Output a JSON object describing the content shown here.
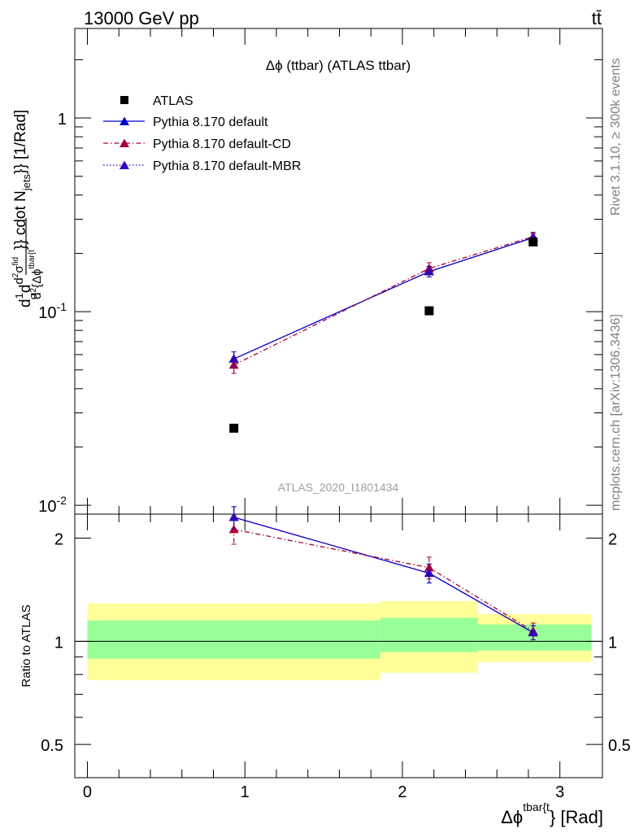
{
  "header": {
    "left": "13000 GeV pp",
    "right": "tt̄"
  },
  "side_labels": {
    "rivet": "Rivet 3.1.10, ≥ 300k events",
    "source": "mcplots.cern.ch [arXiv:1306.3436]"
  },
  "chart_data": [
    {
      "type": "line",
      "title": "Δϕ (ttbar) (ATLAS ttbar)",
      "analysis_label": "ATLAS_2020_I1801434",
      "ylabel": "d¹⁄σ d d²σ^fid ⁄ d² {Δϕ^tbar{t}} cdot N_jets}} [1/Rad]",
      "ylabel_parts": {
        "a": "d",
        "b": "1",
        "c": "σ",
        "d": "d",
        "e": "d",
        "e_sup": "2",
        "f": "σ",
        "f_sup": "fid",
        "g": "d",
        "g_sup": "2",
        "h": "{Δϕ",
        "h_sup": "tbar{t",
        "i": "}} cdot N",
        "i_sub": "jets",
        "j": "}} [1/Rad]"
      },
      "yscale": "log",
      "ylim": [
        0.009,
        2.9
      ],
      "xlim": [
        -0.08,
        3.27
      ],
      "y_ticks": [
        {
          "value": 0.01,
          "label": "10",
          "exp": "-2"
        },
        {
          "value": 0.1,
          "label": "10",
          "exp": "-1"
        },
        {
          "value": 1,
          "label": "1",
          "exp": ""
        }
      ],
      "legend_placement": "top-left",
      "legend": [
        {
          "name": "ATLAS",
          "marker": "square"
        },
        {
          "name": "Pythia 8.170 default",
          "marker": "triangle"
        },
        {
          "name": "Pythia 8.170 default-CD",
          "marker": "triangle"
        },
        {
          "name": "Pythia 8.170 default-MBR",
          "marker": "triangle"
        }
      ],
      "series": [
        {
          "name": "ATLAS",
          "color": "#000000",
          "style": "marker",
          "x": [
            0.93,
            2.17,
            2.83
          ],
          "y": [
            0.025,
            0.101,
            0.229
          ]
        },
        {
          "name": "Pythia 8.170 default",
          "color": "#0000cc",
          "style": "solid",
          "x": [
            0.93,
            2.17,
            2.83
          ],
          "y": [
            0.057,
            0.161,
            0.241
          ],
          "yerr": [
            0.005,
            0.01,
            0.012
          ]
        },
        {
          "name": "Pythia 8.170 default-CD",
          "color": "#aa0033",
          "style": "dashdot",
          "x": [
            0.93,
            2.17,
            2.83
          ],
          "y": [
            0.053,
            0.167,
            0.244
          ],
          "yerr": [
            0.005,
            0.012,
            0.013
          ]
        },
        {
          "name": "Pythia 8.170 default-MBR",
          "color": "#3300bb",
          "style": "dotted",
          "x": [
            0.93,
            2.17,
            2.83
          ],
          "y": [
            0.057,
            0.161,
            0.241
          ],
          "yerr": [
            0.005,
            0.01,
            0.012
          ]
        }
      ]
    },
    {
      "type": "line",
      "ylabel": "Ratio to ATLAS",
      "xlabel": "Δϕ",
      "xlabel_sup": "tbar{t",
      "xlabel_tail": "} [Rad]",
      "yscale": "log",
      "ylim": [
        0.4,
        2.35
      ],
      "xlim": [
        -0.08,
        3.27
      ],
      "y_ticks": [
        {
          "value": 0.5,
          "label": "0.5"
        },
        {
          "value": 1,
          "label": "1"
        },
        {
          "value": 2,
          "label": "2"
        }
      ],
      "x_ticks": [
        {
          "value": 0,
          "label": "0"
        },
        {
          "value": 1,
          "label": "1"
        },
        {
          "value": 2,
          "label": "2"
        },
        {
          "value": 3,
          "label": "3"
        }
      ],
      "uncertainty_bands": [
        {
          "x0": 0.0,
          "x1": 1.86,
          "yellow": [
            0.77,
            1.29
          ],
          "green": [
            0.89,
            1.15
          ]
        },
        {
          "x0": 1.86,
          "x1": 2.48,
          "yellow": [
            0.81,
            1.31
          ],
          "green": [
            0.93,
            1.17
          ]
        },
        {
          "x0": 2.48,
          "x1": 3.2,
          "yellow": [
            0.87,
            1.2
          ],
          "green": [
            0.94,
            1.12
          ]
        }
      ],
      "series": [
        {
          "name": "Pythia 8.170 default",
          "color": "#0000cc",
          "style": "solid",
          "x": [
            0.93,
            2.17,
            2.83
          ],
          "y": [
            2.3,
            1.58,
            1.06
          ],
          "yerr": [
            0.17,
            0.1,
            0.05
          ]
        },
        {
          "name": "Pythia 8.170 default-CD",
          "color": "#aa0033",
          "style": "dashdot",
          "x": [
            0.93,
            2.17,
            2.83
          ],
          "y": [
            2.12,
            1.64,
            1.07
          ],
          "yerr": [
            0.2,
            0.12,
            0.06
          ]
        },
        {
          "name": "Pythia 8.170 default-MBR",
          "color": "#3300bb",
          "style": "dotted",
          "x": [
            0.93,
            2.17,
            2.83
          ],
          "y": [
            2.3,
            1.58,
            1.06
          ],
          "yerr": [
            0.17,
            0.1,
            0.05
          ]
        }
      ]
    }
  ]
}
